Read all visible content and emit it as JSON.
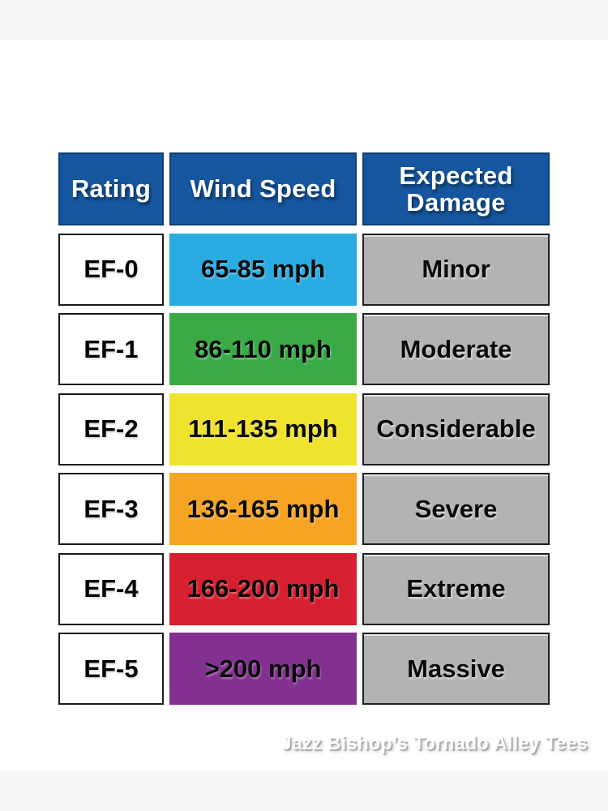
{
  "colors": {
    "letterbox_band": "#f7f7f7",
    "page_background": "#ffffff",
    "header_bg": "#15569e",
    "rating_bg": "#ffffff",
    "damage_bg": "#b3b3b3"
  },
  "watermark": {
    "text": "Jazz Bishop’s Tornado Alley Tees"
  },
  "chart_data": {
    "type": "table",
    "columns": [
      "Rating",
      "Wind Speed",
      "Expected Damage"
    ],
    "rows": [
      [
        "EF-0",
        "65-85 mph",
        "Minor"
      ],
      [
        "EF-1",
        "86-110 mph",
        "Moderate"
      ],
      [
        "EF-2",
        "111-135 mph",
        "Considerable"
      ],
      [
        "EF-3",
        "136-165 mph",
        "Severe"
      ],
      [
        "EF-4",
        "166-200 mph",
        "Extreme"
      ],
      [
        "EF-5",
        ">200 mph",
        "Massive"
      ]
    ],
    "row_colors": [
      "#29abe2",
      "#3aaa47",
      "#efe32d",
      "#f6a423",
      "#d7202f",
      "#833190"
    ],
    "legend_position": "none",
    "grid": false
  }
}
